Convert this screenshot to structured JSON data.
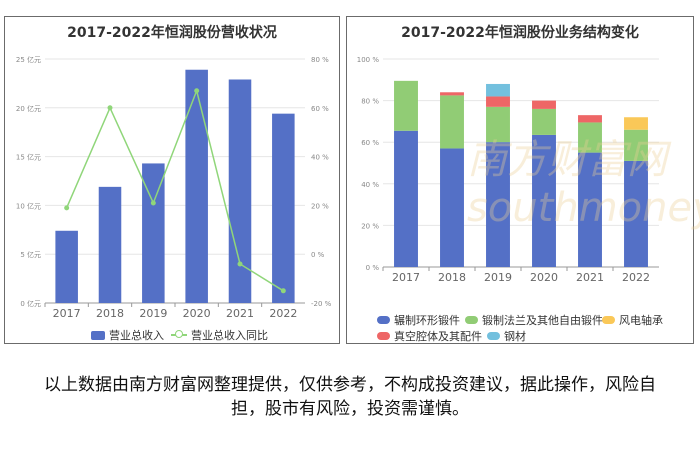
{
  "left_chart": {
    "title": "2017-2022年恒润股份营收状况",
    "legend": {
      "bar": "营业总收入",
      "line": "营业总收入同比"
    },
    "y_left_ticks": [
      "0 亿元",
      "5 亿元",
      "10 亿元",
      "15 亿元",
      "20 亿元",
      "25 亿元"
    ],
    "y_right_ticks": [
      "-20 %",
      "0 %",
      "20 %",
      "40 %",
      "60 %",
      "80 %"
    ]
  },
  "right_chart": {
    "title": "2017-2022年恒润股份业务结构变化",
    "y_ticks": [
      "0 %",
      "20 %",
      "40 %",
      "60 %",
      "80 %",
      "100 %"
    ],
    "legend": [
      "辗制环形锻件",
      "锻制法兰及其他自由锻件",
      "风电轴承",
      "真空腔体及其配件",
      "钢材"
    ]
  },
  "disclaimer": "以上数据由南方财富网整理提供，仅供参考，不构成投资建议，据此操作，风险自担，股市有风险，投资需谨慎。",
  "watermark": "南方财富网 southmoney.com",
  "colors": {
    "blue": "#5470c6",
    "green": "#91cc75",
    "yellow": "#fac858",
    "red": "#ee6666",
    "cyan": "#73c0de",
    "line": "#90d67a"
  },
  "chart_data": [
    {
      "type": "bar",
      "title": "2017-2022年恒润股份营收状况",
      "categories": [
        "2017",
        "2018",
        "2019",
        "2020",
        "2021",
        "2022"
      ],
      "series": [
        {
          "name": "营业总收入",
          "type": "bar",
          "axis": "left",
          "values": [
            7.4,
            11.9,
            14.3,
            23.9,
            22.9,
            19.4
          ]
        },
        {
          "name": "营业总收入同比",
          "type": "line",
          "axis": "right",
          "values": [
            19,
            60,
            21,
            67,
            -4,
            -15
          ]
        }
      ],
      "ylim_left": [
        0,
        25
      ],
      "ylim_right": [
        -20,
        80
      ],
      "legend_position": "bottom"
    },
    {
      "type": "bar",
      "stacked": true,
      "title": "2017-2022年恒润股份业务结构变化",
      "categories": [
        "2017",
        "2018",
        "2019",
        "2020",
        "2021",
        "2022"
      ],
      "series": [
        {
          "name": "辗制环形锻件",
          "values": [
            65.5,
            57,
            60,
            63.5,
            55,
            51
          ]
        },
        {
          "name": "锻制法兰及其他自由锻件",
          "values": [
            24,
            25.5,
            17,
            12.5,
            14.5,
            15
          ]
        },
        {
          "name": "风电轴承",
          "values": [
            0,
            0,
            0,
            0,
            0,
            6
          ]
        },
        {
          "name": "真空腔体及其配件",
          "values": [
            0,
            1.5,
            5,
            4,
            3.5,
            0
          ]
        },
        {
          "name": "钢材",
          "values": [
            0,
            0,
            6,
            0,
            0,
            0
          ]
        }
      ],
      "ylim": [
        0,
        100
      ],
      "legend_position": "bottom"
    }
  ]
}
